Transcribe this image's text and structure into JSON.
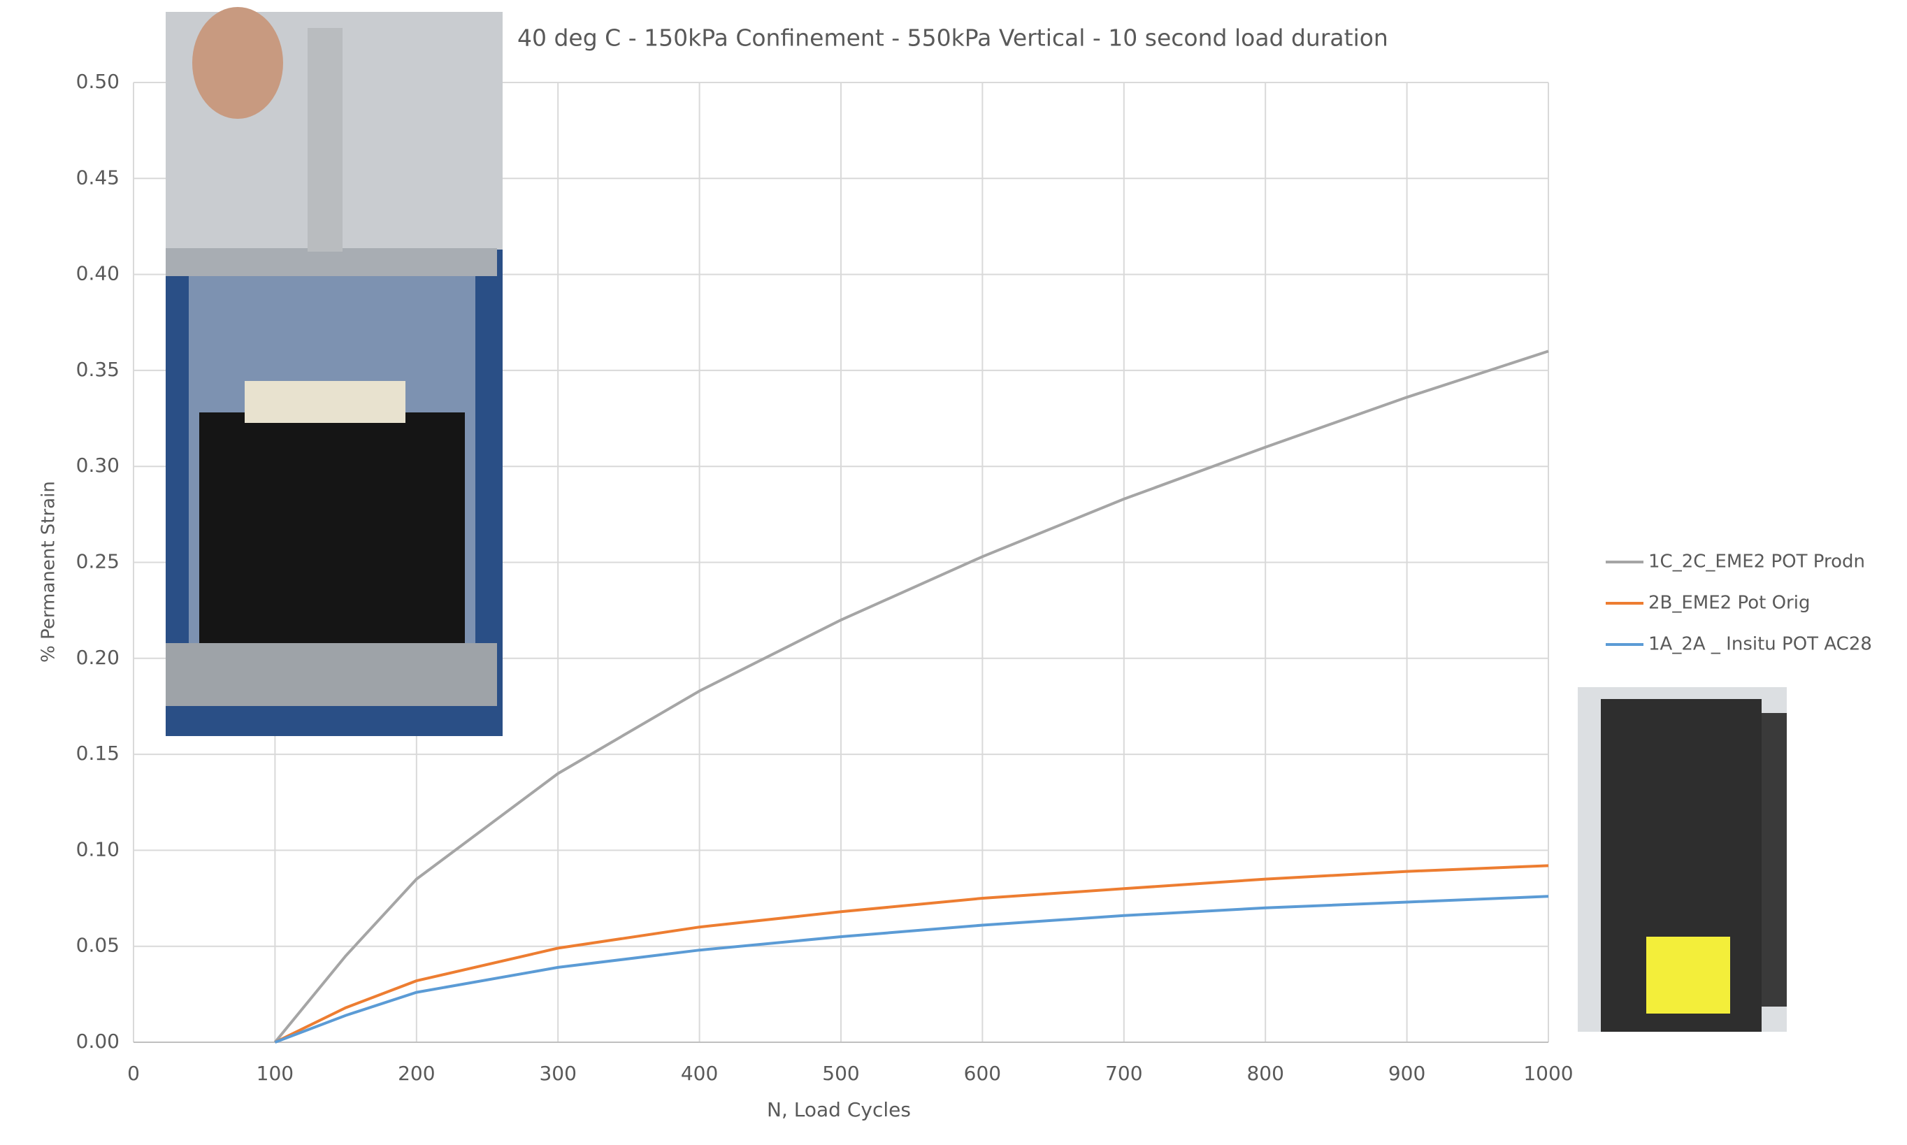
{
  "chart_data": {
    "type": "line",
    "title": "40 deg C - 150kPa Confinement - 550kPa Vertical - 10 second load duration",
    "x_label": "N, Load Cycles",
    "y_label": "% Permanent Strain",
    "x": [
      100,
      150,
      200,
      300,
      400,
      500,
      600,
      700,
      800,
      900,
      1000
    ],
    "series": [
      {
        "name": "1C_2C_EME2 POT Prodn",
        "color": "#a5a5a5",
        "values": [
          0,
          0.045,
          0.085,
          0.14,
          0.183,
          0.22,
          0.253,
          0.283,
          0.31,
          0.336,
          0.36
        ]
      },
      {
        "name": "2B_EME2 Pot Orig",
        "color": "#ed7d31",
        "values": [
          0,
          0.018,
          0.032,
          0.049,
          0.06,
          0.068,
          0.075,
          0.08,
          0.085,
          0.089,
          0.092
        ]
      },
      {
        "name": "1A_2A _ Insitu POT AC28",
        "color": "#5b9bd5",
        "values": [
          0,
          0.014,
          0.026,
          0.039,
          0.048,
          0.055,
          0.061,
          0.066,
          0.07,
          0.073,
          0.076
        ]
      }
    ],
    "xlim": [
      0,
      1000
    ],
    "xticks": [
      0,
      100,
      200,
      300,
      400,
      500,
      600,
      700,
      800,
      900,
      1000
    ],
    "ylim": [
      0,
      0.5
    ],
    "yticks": [
      {
        "value": 0,
        "label": "0.00"
      },
      0.05,
      {
        "value": 0.1,
        "label": "0.10"
      },
      0.15,
      {
        "value": 0.2,
        "label": "0.20"
      },
      0.25,
      {
        "value": 0.3,
        "label": "0.30"
      },
      0.35,
      {
        "value": 0.4,
        "label": "0.40"
      },
      0.45,
      {
        "value": 0.5,
        "label": "0.50"
      }
    ],
    "grid": true,
    "legend": "right"
  }
}
